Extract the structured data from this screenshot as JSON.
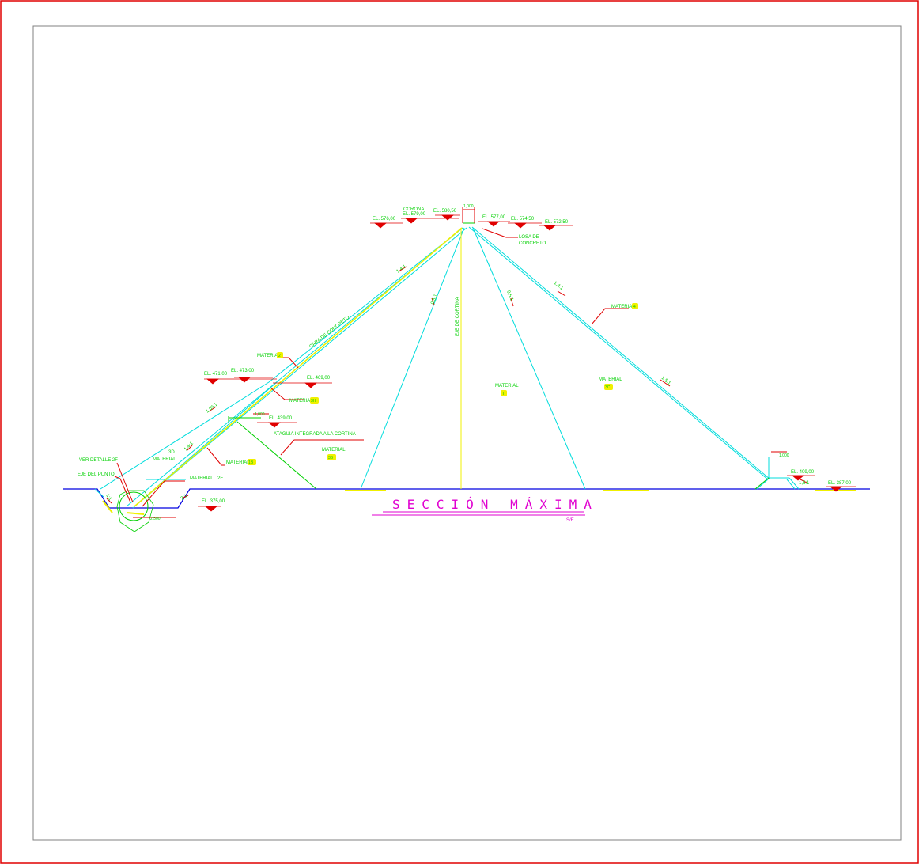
{
  "drawing": {
    "title": "SECCIÓN MÁXIMA",
    "scale_note": "S/E",
    "axis_label": "EJE DE CORTINA",
    "upstream_face_label": "CARA DE CONCRETO",
    "slope_labels": {
      "upstream_main": "1,4:1",
      "core_left": "0,5:1",
      "core_right": "0,5:1",
      "downstream_top": "1,4:1",
      "downstream_mid": "1,5:1",
      "upstream_lower": "1,65:1",
      "upstream_toe": "1,4:1",
      "toe_slope_a": "1:1",
      "toe_slope_b": "2:1",
      "berm_slope": "1,5:1"
    },
    "elevations": {
      "el_576": "EL. 576,00",
      "el_579": "EL. 579,00",
      "el_580_5": "EL. 580,50",
      "el_577": "EL. 577,00",
      "el_574_5": "EL. 574,50",
      "el_572_5": "EL. 572,50",
      "el_471": "EL. 471,00",
      "el_473": "EL. 473,00",
      "el_469": "EL. 469,00",
      "el_439": "EL. 439,00",
      "el_375": "EL. 375,00",
      "el_409": "EL. 409,00",
      "el_387": "EL. 387,00"
    },
    "labels": {
      "corona": "CORONA",
      "crest_width": "1,000",
      "losa_line1": "LOSA DE",
      "losa_line2": "CONCRETO",
      "material_2": "MATERIAL",
      "material_2_tag": "2",
      "material_3h": "MATERIAL",
      "material_3h_tag": "3H",
      "material_4": "MATERIAL",
      "material_4_tag": "4",
      "material_t": "MATERIAL",
      "material_t_tag": "T",
      "material_3c": "MATERIAL",
      "material_3c_tag": "3C",
      "material_3b": "MATERIAL",
      "material_3b_tag": "3B",
      "material_3d": "3D",
      "material_3d_word": "MATERIAL",
      "material_1b": "MATERIAL",
      "material_1b_tag": "1B",
      "material_2f": "MATERIAL",
      "material_2f_tag": "2F",
      "ataguia": "ATAGUIA INTEGRADA A LA CORTINA",
      "ver_detalle": "VER DETALLE 2F",
      "eje_punto": "EJE DEL PUNTO",
      "dim_1000_a": "1,000",
      "dim_1000_b": "1,000",
      "dim_2500": "2,500"
    },
    "colors": {
      "border": "#e00000",
      "frame": "#808080",
      "cyan": "#00dcdc",
      "yellow": "#f0f000",
      "green": "#00d000",
      "red": "#e00000",
      "blue": "#0000e0",
      "magenta": "#e000d0"
    }
  }
}
